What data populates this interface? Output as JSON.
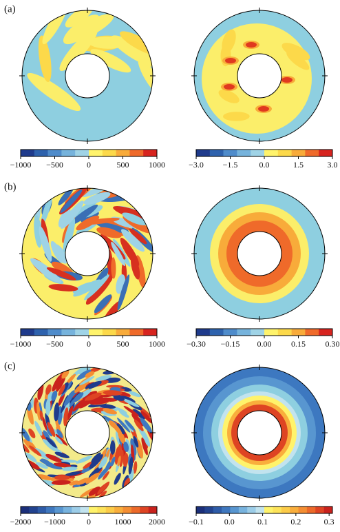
{
  "rows": [
    {
      "label": "(a)",
      "plots": [
        {
          "colorbar": {
            "lim": [
              -1000,
              1000
            ],
            "ticks": [
              {
                "value": -1000,
                "label": "−1000"
              },
              {
                "value": -500,
                "label": "−500"
              },
              0,
              500,
              1000
            ],
            "colors": [
              "#1f3b8c",
              "#2e62ad",
              "#4f8ccb",
              "#76b3dc",
              "#9fd3e6",
              "#fff36b",
              "#fcd94a",
              "#f8ab3a",
              "#ef6a2a",
              "#d7241f"
            ]
          }
        },
        {
          "colorbar": {
            "lim": [
              -3,
              3
            ],
            "ticks": [
              {
                "value": -3,
                "label": "−3.0"
              },
              {
                "value": -1.5,
                "label": "−1.5"
              },
              {
                "value": 0,
                "label": "0.0"
              },
              1.5,
              {
                "value": 3,
                "label": "3.0"
              }
            ],
            "colors": [
              "#1f3b8c",
              "#2e62ad",
              "#4f8ccb",
              "#76b3dc",
              "#9fd3e6",
              "#fff36b",
              "#fcd94a",
              "#f8ab3a",
              "#ef6a2a",
              "#d7241f"
            ]
          }
        }
      ]
    },
    {
      "label": "(b)",
      "plots": [
        {
          "colorbar": {
            "lim": [
              -1000,
              1000
            ],
            "ticks": [
              {
                "value": -1000,
                "label": "−1000"
              },
              {
                "value": -500,
                "label": "−500"
              },
              0,
              500,
              1000
            ],
            "colors": [
              "#1f3b8c",
              "#2e62ad",
              "#4f8ccb",
              "#76b3dc",
              "#9fd3e6",
              "#fff36b",
              "#fcd94a",
              "#f8ab3a",
              "#ef6a2a",
              "#d7241f"
            ]
          }
        },
        {
          "colorbar": {
            "lim": [
              -0.3,
              0.3
            ],
            "ticks": [
              {
                "value": -0.3,
                "label": "−0.30"
              },
              {
                "value": -0.15,
                "label": "−0.15"
              },
              {
                "value": 0,
                "label": "0.00"
              },
              0.15,
              {
                "value": 0.3,
                "label": "0.30"
              }
            ],
            "colors": [
              "#1f3b8c",
              "#2e62ad",
              "#4f8ccb",
              "#76b3dc",
              "#9fd3e6",
              "#fff36b",
              "#fcd94a",
              "#f8ab3a",
              "#ef6a2a",
              "#d7241f"
            ]
          }
        }
      ]
    },
    {
      "label": "(c)",
      "plots": [
        {
          "colorbar": {
            "lim": [
              -2000,
              2000
            ],
            "ticks": [
              {
                "value": -2000,
                "label": "−2000"
              },
              {
                "value": -1000,
                "label": "−1000"
              },
              0,
              1000,
              2000
            ],
            "colors": [
              "#1b2f7a",
              "#22438f",
              "#2e5ca8",
              "#3f78bf",
              "#5896d0",
              "#78b3de",
              "#9ccde8",
              "#c2e3ee",
              "#fff36b",
              "#fde35a",
              "#fccb48",
              "#f9ae3c",
              "#f48e33",
              "#ec6a2a",
              "#de4423",
              "#c9221d"
            ]
          }
        },
        {
          "colorbar": {
            "lim": [
              -0.1,
              0.31
            ],
            "ticks": [
              {
                "value": -0.1,
                "label": "−0.1"
              },
              {
                "value": 0,
                "label": "0.0"
              },
              0.1,
              0.2,
              0.3
            ],
            "colors": [
              "#1b2f7a",
              "#22438f",
              "#2e5ca8",
              "#3f78bf",
              "#5896d0",
              "#78b3de",
              "#9ccde8",
              "#c2e3ee",
              "#fff36b",
              "#fde35a",
              "#fccb48",
              "#f9ae3c",
              "#f48e33",
              "#ec6a2a",
              "#de4423",
              "#c9221d"
            ]
          }
        }
      ]
    }
  ]
}
